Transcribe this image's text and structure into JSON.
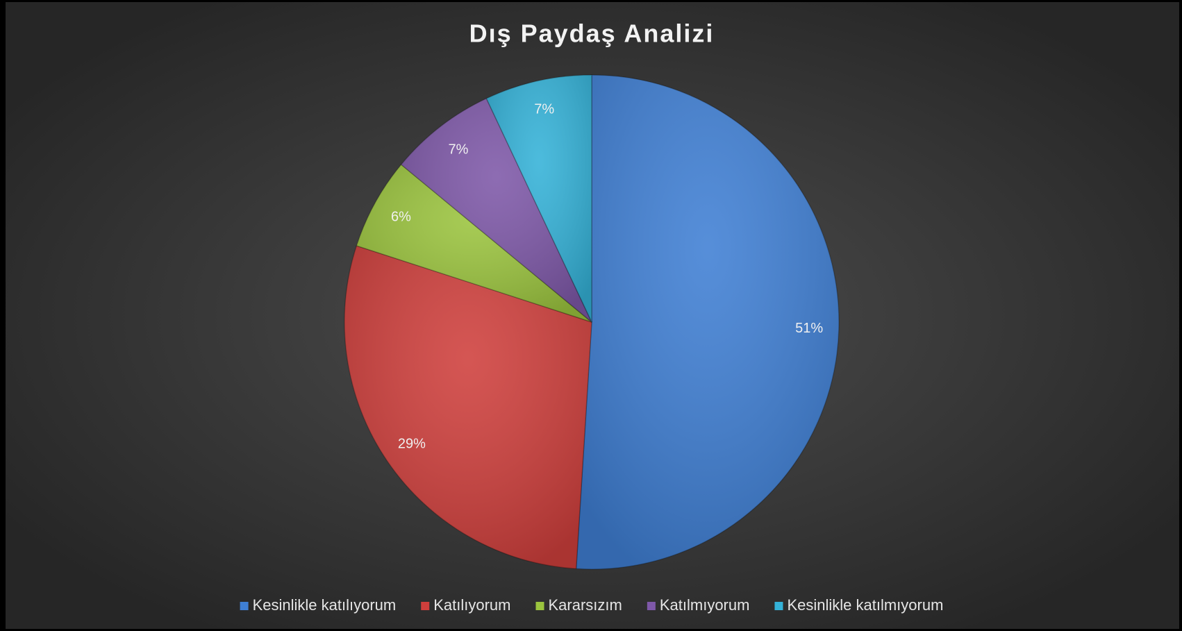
{
  "chart_data": {
    "type": "pie",
    "title": "Dış Paydaş Analizi",
    "categories": [
      "Kesinlikle katılıyorum",
      "Katılıyorum",
      "Kararsızım",
      "Katılmıyorum",
      "Kesinlikle katılmıyorum"
    ],
    "values": [
      51,
      29,
      6,
      7,
      7
    ],
    "value_labels": [
      "51%",
      "29%",
      "6%",
      "7%",
      "7%"
    ],
    "colors": [
      "#3f7fd4",
      "#cf3f3c",
      "#9bc43e",
      "#7e58a8",
      "#34b2d8"
    ],
    "legend": "bottom"
  }
}
